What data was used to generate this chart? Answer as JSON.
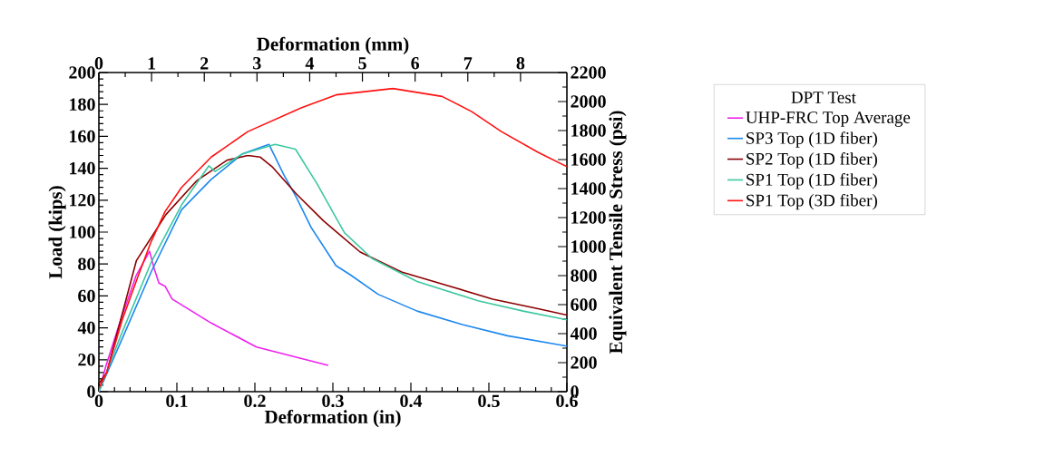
{
  "chart_data": {
    "type": "line",
    "xlabel": "Deformation (in)",
    "ylabel": "Load (kips)",
    "x2label": "Deformation (mm)",
    "y2label": "Equivalent Tensile Stress (psi)",
    "legend_title": "DPT Test",
    "legend": "right",
    "xlim": [
      0,
      0.6
    ],
    "xticks": [
      0,
      0.1,
      0.2,
      0.3,
      0.4,
      0.5,
      0.6
    ],
    "ylim": [
      0,
      200
    ],
    "yticks": [
      0,
      20,
      40,
      60,
      80,
      100,
      120,
      140,
      160,
      180,
      200
    ],
    "x2lim": [
      0,
      8.88
    ],
    "x2ticks": [
      0,
      1,
      2,
      3,
      4,
      5,
      6,
      7,
      8
    ],
    "y2lim": [
      0,
      2200
    ],
    "y2ticks": [
      0,
      200,
      400,
      600,
      800,
      1000,
      1200,
      1400,
      1600,
      1800,
      2000,
      2200
    ],
    "series": [
      {
        "name": "UHP-FRC Top Average",
        "color": "#ee22ee",
        "x": [
          0,
          0.009,
          0.028,
          0.048,
          0.065,
          0.071,
          0.077,
          0.085,
          0.094,
          0.144,
          0.202,
          0.294
        ],
        "values": [
          0,
          16,
          45,
          73,
          88,
          77,
          68,
          66,
          58,
          43,
          28,
          16.5
        ]
      },
      {
        "name": "SP3 Top (1D fiber)",
        "color": "#1e88ee",
        "x": [
          0,
          0.028,
          0.067,
          0.106,
          0.144,
          0.184,
          0.218,
          0.237,
          0.253,
          0.272,
          0.304,
          0.323,
          0.358,
          0.408,
          0.466,
          0.524,
          0.6
        ],
        "values": [
          0,
          31,
          75,
          114,
          133,
          149,
          155,
          136,
          122,
          103,
          79,
          73,
          61,
          50.5,
          42,
          35,
          28.5
        ]
      },
      {
        "name": "SP2 Top (1D fiber)",
        "color": "#8b0000",
        "x": [
          0,
          0.01,
          0.048,
          0.086,
          0.125,
          0.164,
          0.191,
          0.207,
          0.222,
          0.253,
          0.288,
          0.335,
          0.388,
          0.447,
          0.505,
          0.563,
          0.6
        ],
        "values": [
          5,
          12,
          82,
          111,
          132,
          145,
          148,
          147,
          141,
          124,
          107,
          87.5,
          75,
          66.5,
          58,
          52,
          48
        ]
      },
      {
        "name": "SP1 Top (1D fiber)",
        "color": "#3cc8a0",
        "x": [
          0,
          0.028,
          0.067,
          0.106,
          0.141,
          0.149,
          0.184,
          0.226,
          0.252,
          0.28,
          0.304,
          0.315,
          0.35,
          0.408,
          0.486,
          0.544,
          0.6
        ],
        "values": [
          0,
          35,
          81,
          117,
          141.5,
          138,
          149,
          155,
          152,
          130,
          109,
          99.5,
          83.5,
          69,
          57,
          50.5,
          45
        ]
      },
      {
        "name": "SP1 Top (3D fiber)",
        "color": "#ff1010",
        "x": [
          0,
          0.01,
          0.03,
          0.05,
          0.067,
          0.085,
          0.106,
          0.144,
          0.191,
          0.26,
          0.304,
          0.377,
          0.44,
          0.478,
          0.516,
          0.563,
          0.6
        ],
        "values": [
          2,
          12,
          45,
          72,
          94,
          113,
          128,
          147,
          163,
          178,
          186,
          190,
          185,
          175.5,
          163,
          150,
          141
        ]
      }
    ]
  }
}
